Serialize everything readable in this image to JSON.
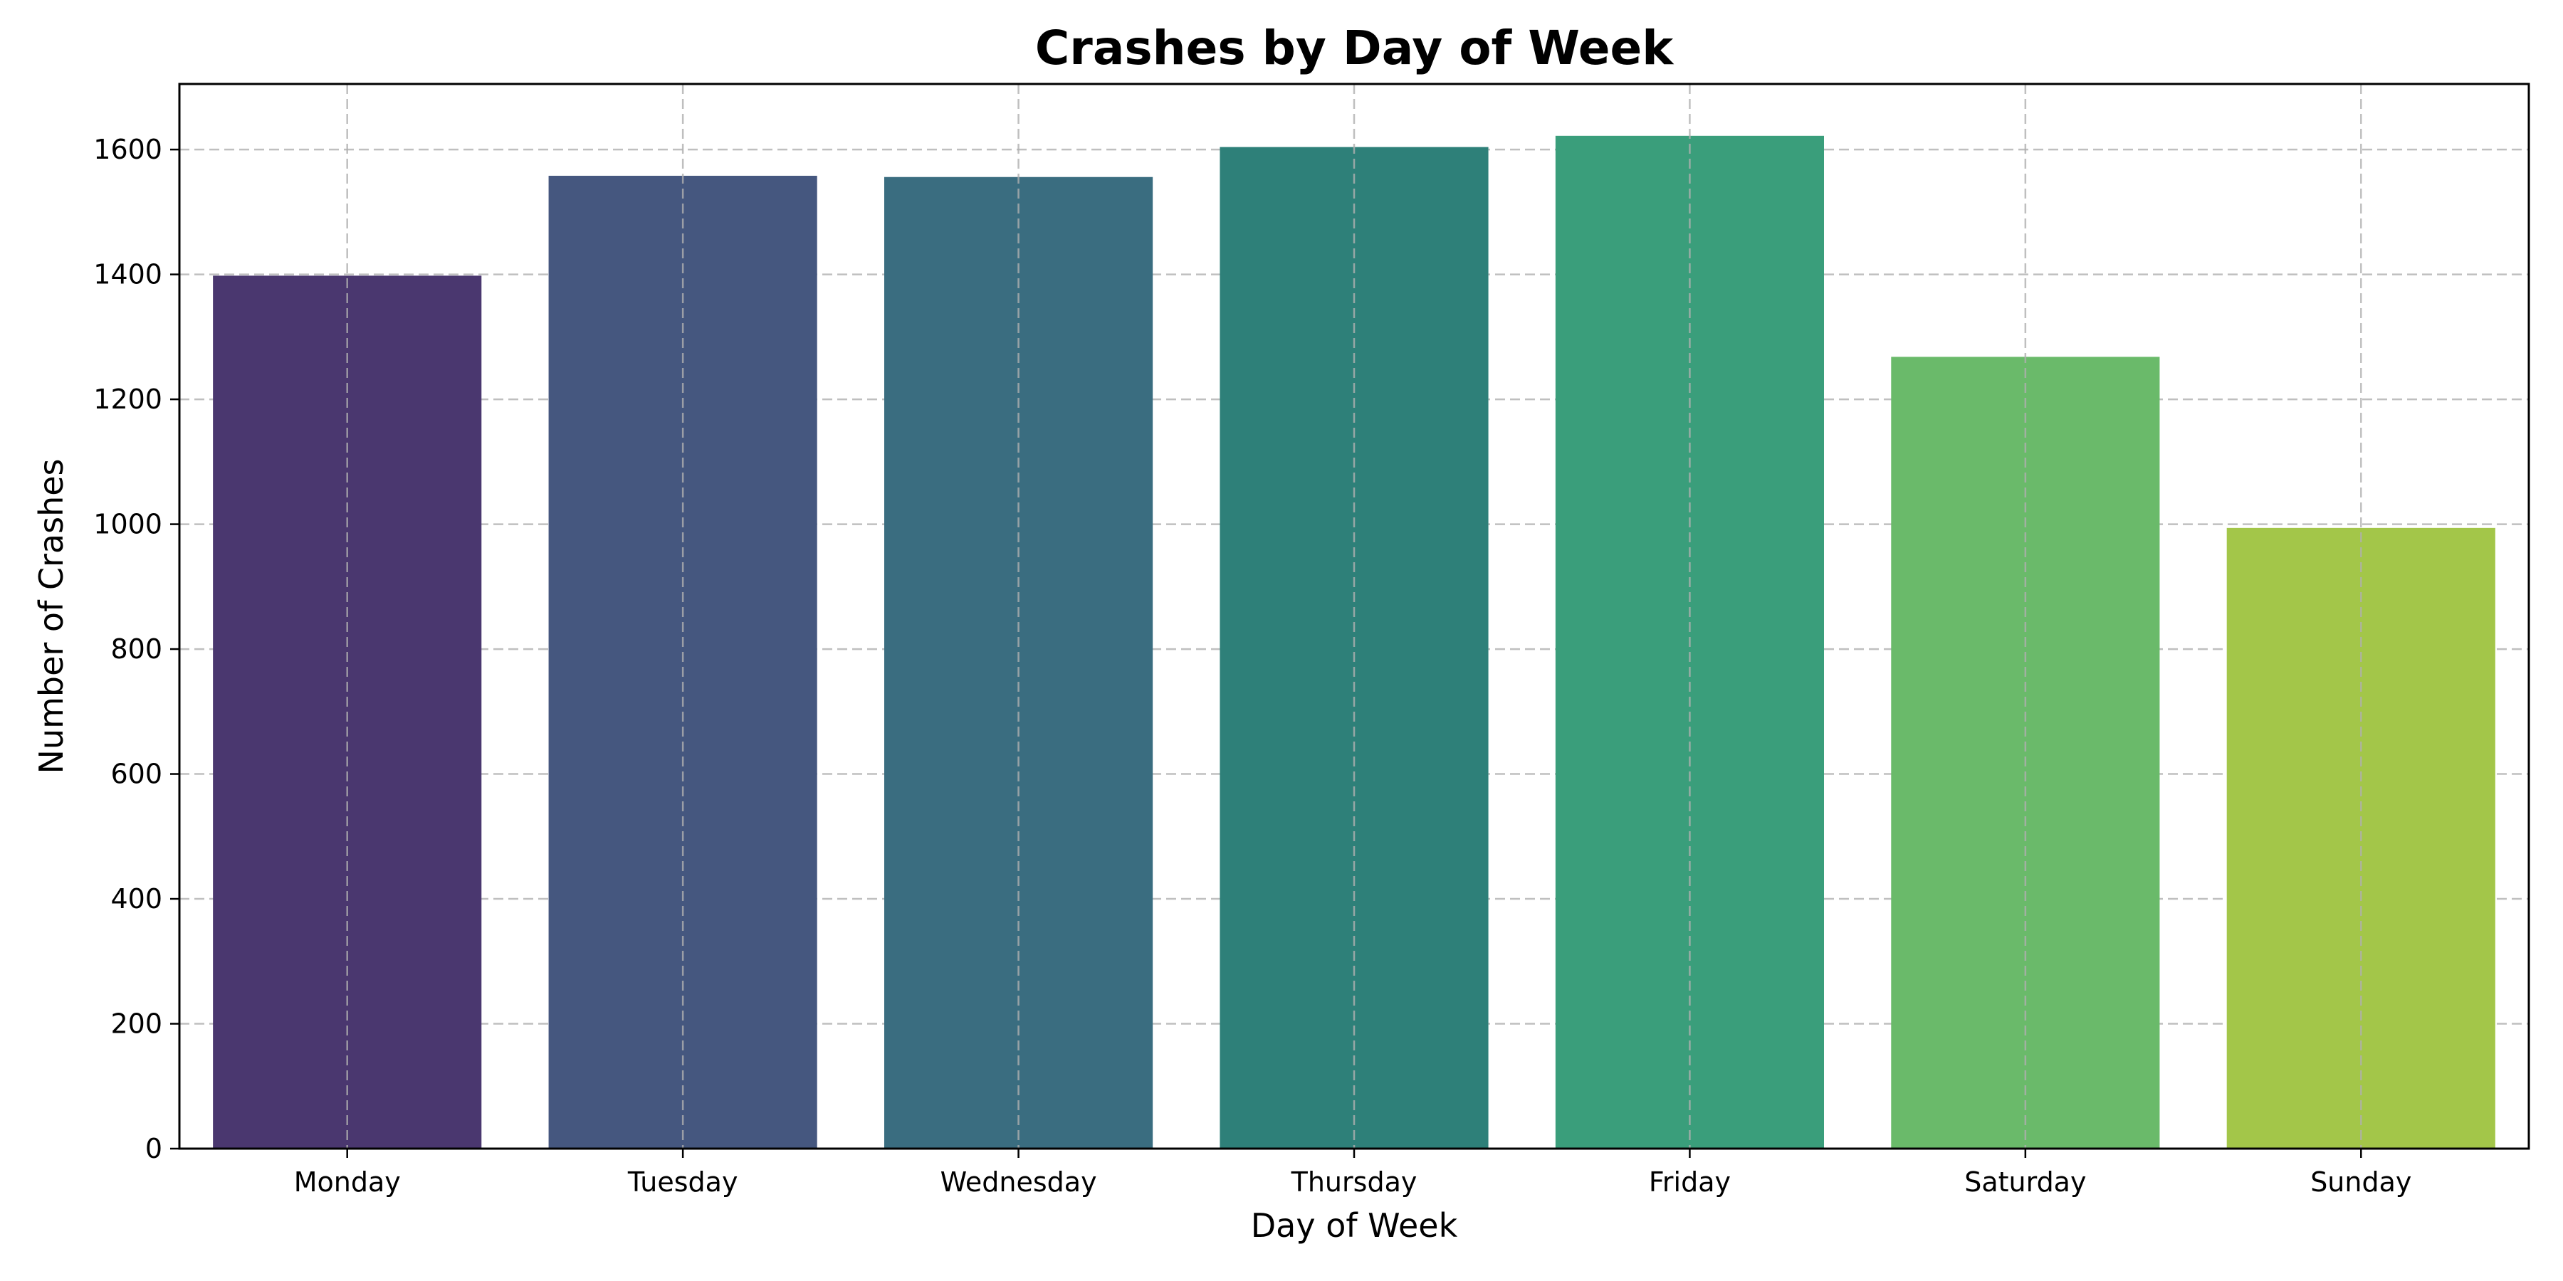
{
  "chart_data": {
    "type": "bar",
    "title": "Crashes by Day of Week",
    "xlabel": "Day of Week",
    "ylabel": "Number of Crashes",
    "categories": [
      "Monday",
      "Tuesday",
      "Wednesday",
      "Thursday",
      "Friday",
      "Saturday",
      "Sunday"
    ],
    "values": [
      1398,
      1558,
      1556,
      1604,
      1622,
      1268,
      994
    ],
    "colors": [
      "#4a376f",
      "#45577f",
      "#3a6d80",
      "#2e8079",
      "#3a9e7b",
      "#6aba6a",
      "#a3c649"
    ],
    "ylim": [
      0,
      1705
    ],
    "yticks": [
      0,
      200,
      400,
      600,
      800,
      1000,
      1200,
      1400,
      1600
    ],
    "grid": true,
    "grid_color": "#b0b0b0"
  }
}
